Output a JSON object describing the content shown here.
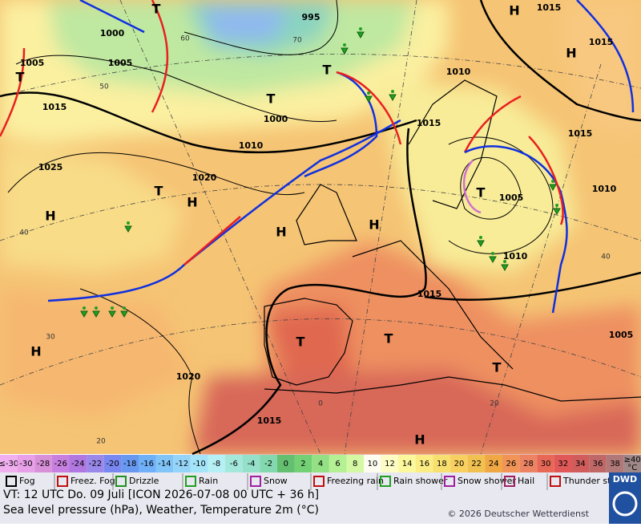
{
  "map": {
    "isobar_labels": [
      1000,
      1005,
      1005,
      1015,
      1025,
      1020,
      1010,
      1000,
      995,
      1015,
      1015,
      1010,
      1015,
      1015,
      1010,
      1005,
      1010,
      1015,
      1005,
      1020,
      1015
    ],
    "centers": [
      "T",
      "T",
      "T",
      "T",
      "H",
      "H",
      "H",
      "H",
      "T",
      "H",
      "T",
      "T",
      "T",
      "T",
      "H",
      "H",
      "H"
    ],
    "temperature_labels": [
      50,
      40,
      30,
      20,
      60,
      70,
      0,
      20,
      40
    ]
  },
  "scale": {
    "low_label": "≤-30",
    "values": [
      -30,
      -28,
      -26,
      -24,
      -22,
      -20,
      -18,
      -16,
      -14,
      -12,
      -10,
      -8,
      -6,
      -4,
      -2,
      0,
      2,
      4,
      6,
      8,
      10,
      12,
      14,
      16,
      18,
      20,
      22,
      24,
      26,
      28,
      30,
      32,
      34,
      36,
      38
    ],
    "colors": [
      "#e8a0e8",
      "#d890d8",
      "#c880e0",
      "#b078e0",
      "#9a88ea",
      "#7888f0",
      "#6898f0",
      "#70b0f8",
      "#80c4f8",
      "#94d4f8",
      "#a4e4f8",
      "#b4f0f4",
      "#a4e8dc",
      "#94e0c8",
      "#84d8b0",
      "#64c070",
      "#74d074",
      "#94e084",
      "#b4f094",
      "#d4f8a4",
      "#fcfcf0",
      "#fcfcc4",
      "#fcf89c",
      "#fcec84",
      "#f8e070",
      "#f8d060",
      "#f0c050",
      "#f0a844",
      "#f09458",
      "#ec8464",
      "#e86858",
      "#e05858",
      "#d05c5c",
      "#c06868",
      "#b07878"
    ],
    "low_color": "#f0b0f0",
    "high_label": "≥40",
    "high_color": "#a08888",
    "unit": "°C"
  },
  "legend": [
    "Fog",
    "Freez. Fog",
    "Drizzle",
    "Rain",
    "Snow",
    "Freezing rain",
    "Rain shower",
    "Snow shower",
    "Hail",
    "Thunder storm"
  ],
  "footer": {
    "valid_time": "VT: 12 UTC Do.  09 Juli [ICON 2026-07-08  00 UTC + 36 h]",
    "description": "Sea level pressure (hPa), Weather, Temperature 2m (°C)",
    "copyright": "© 2026 Deutscher Wetterdienst",
    "logo": "DWD"
  }
}
